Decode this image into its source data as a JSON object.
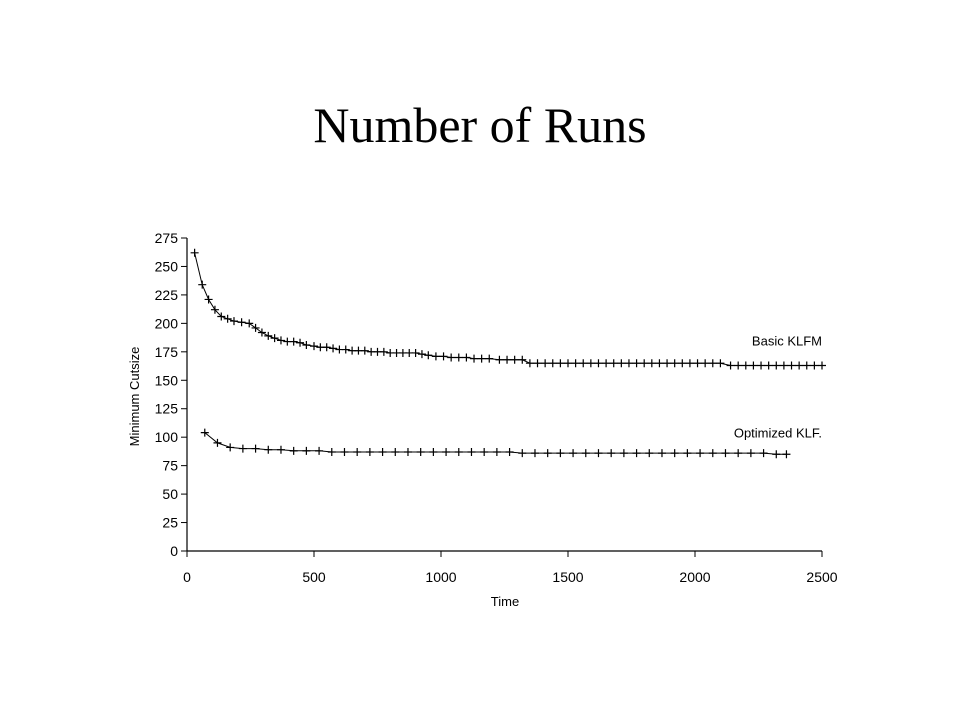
{
  "slide": {
    "title": "Number of Runs"
  },
  "chart_data": {
    "type": "line",
    "title": "",
    "xlabel": "Time",
    "ylabel": "Minimum Cutsize",
    "xlim": [
      0,
      2500
    ],
    "ylim": [
      0,
      275
    ],
    "xticks": [
      0,
      500,
      1000,
      1500,
      2000,
      2500
    ],
    "yticks": [
      0,
      25,
      50,
      75,
      100,
      125,
      150,
      175,
      200,
      225,
      250,
      275
    ],
    "grid": false,
    "legend": "inline labels at right end of each series",
    "series": [
      {
        "name": "Basic KLFM",
        "marker": "plus",
        "x": [
          30,
          60,
          85,
          110,
          135,
          160,
          185,
          215,
          245,
          270,
          295,
          320,
          345,
          370,
          395,
          420,
          445,
          470,
          500,
          525,
          550,
          575,
          600,
          625,
          650,
          675,
          700,
          725,
          750,
          775,
          800,
          825,
          850,
          875,
          900,
          925,
          950,
          980,
          1010,
          1040,
          1070,
          1100,
          1130,
          1160,
          1190,
          1230,
          1260,
          1290,
          1320,
          1350,
          1380,
          1410,
          1440,
          1470,
          1500,
          1530,
          1560,
          1590,
          1620,
          1650,
          1680,
          1710,
          1740,
          1770,
          1800,
          1830,
          1860,
          1890,
          1920,
          1950,
          1980,
          2010,
          2040,
          2070,
          2100,
          2140,
          2170,
          2200,
          2230,
          2260,
          2290,
          2320,
          2350,
          2380,
          2410,
          2440,
          2470,
          2500
        ],
        "y": [
          262,
          234,
          221,
          212,
          206,
          204,
          202,
          201,
          200,
          196,
          192,
          189,
          187,
          185,
          184,
          184,
          183,
          181,
          180,
          179,
          179,
          178,
          177,
          177,
          176,
          176,
          176,
          175,
          175,
          175,
          174,
          174,
          174,
          174,
          174,
          173,
          172,
          171,
          171,
          170,
          170,
          170,
          169,
          169,
          169,
          168,
          168,
          168,
          168,
          165,
          165,
          165,
          165,
          165,
          165,
          165,
          165,
          165,
          165,
          165,
          165,
          165,
          165,
          165,
          165,
          165,
          165,
          165,
          165,
          165,
          165,
          165,
          165,
          165,
          165,
          163,
          163,
          163,
          163,
          163,
          163,
          163,
          163,
          163,
          163,
          163,
          163,
          163
        ]
      },
      {
        "name": "Optimized KLF.",
        "marker": "plus",
        "x": [
          70,
          120,
          170,
          220,
          270,
          320,
          370,
          420,
          470,
          520,
          570,
          620,
          670,
          720,
          770,
          820,
          870,
          920,
          970,
          1020,
          1070,
          1120,
          1170,
          1220,
          1270,
          1320,
          1370,
          1420,
          1470,
          1520,
          1570,
          1620,
          1670,
          1720,
          1770,
          1820,
          1870,
          1920,
          1970,
          2020,
          2070,
          2120,
          2170,
          2220,
          2270,
          2320,
          2360
        ],
        "y": [
          104,
          95,
          91,
          90,
          90,
          89,
          89,
          88,
          88,
          88,
          87,
          87,
          87,
          87,
          87,
          87,
          87,
          87,
          87,
          87,
          87,
          87,
          87,
          87,
          87,
          86,
          86,
          86,
          86,
          86,
          86,
          86,
          86,
          86,
          86,
          86,
          86,
          86,
          86,
          86,
          86,
          86,
          86,
          86,
          86,
          85,
          85
        ]
      }
    ]
  }
}
